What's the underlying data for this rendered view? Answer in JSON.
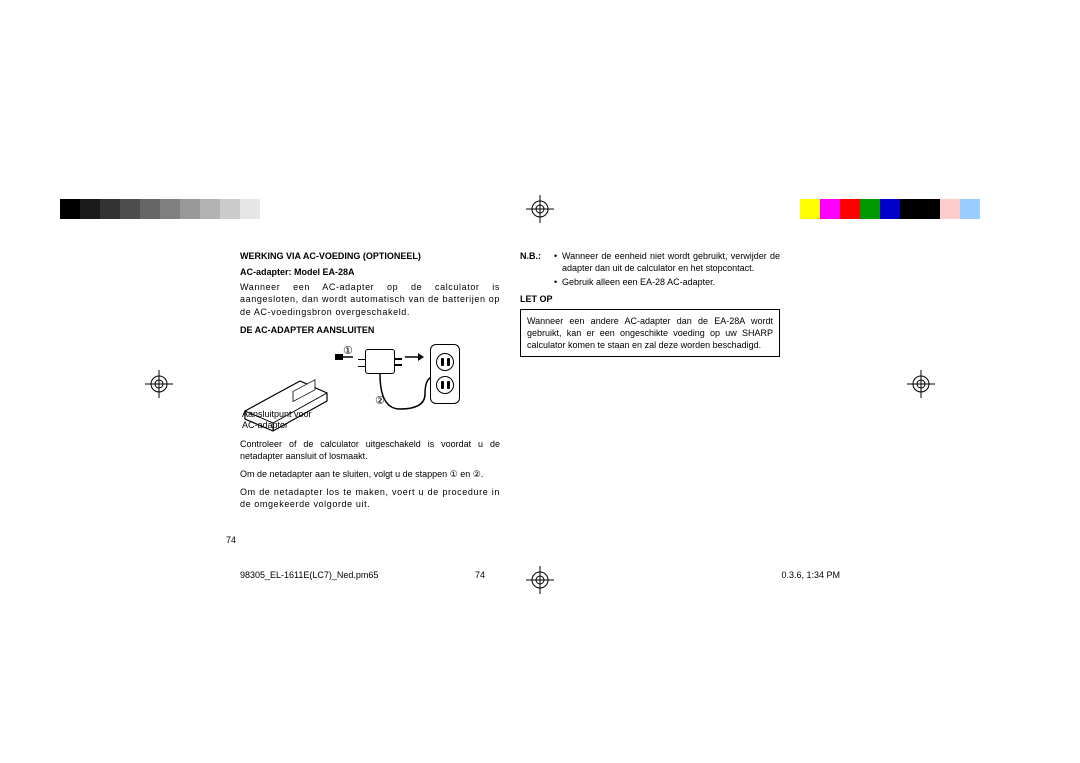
{
  "colorbars": {
    "gray_swatches": [
      "#000000",
      "#1a1a1a",
      "#333333",
      "#4d4d4d",
      "#666666",
      "#808080",
      "#999999",
      "#b3b3b3",
      "#cccccc",
      "#e6e6e6",
      "#ffffff"
    ],
    "color_swatches": [
      "#ffff00",
      "#ff00ff",
      "#ff0000",
      "#009900",
      "#0000cc",
      "#000000",
      "#000000",
      "#ffcccc",
      "#99ccff",
      "#ffffff",
      "#ffffff"
    ]
  },
  "page": {
    "number": "74",
    "left": {
      "title": "WERKING VIA AC-VOEDING (OPTIONEEL)",
      "subtitle": "AC-adapter: Model EA-28A",
      "intro": "Wanneer een AC-adapter op de calculator is aangesloten, dan wordt automatisch van de batterijen op de AC-voedingsbron overgeschakeld.",
      "heading2": "DE AC-ADAPTER AANSLUITEN",
      "diagram": {
        "label_line1": "Aansluitpunt voor",
        "label_line2": "AC-adaptor",
        "step1": "①",
        "step2": "②"
      },
      "p1": "Controleer of de calculator uitgeschakeld is voordat u de netadapter aansluit of losmaakt.",
      "p2a": "Om de netadapter aan te sluiten, volgt u de stappen ",
      "p2b": " en ",
      "p2c": ".",
      "p3": "Om de netadapter los te maken, voert u de procedure in de omgekeerde volgorde uit."
    },
    "right": {
      "nb_label": "N.B.:",
      "nb1": "Wanneer de eenheid niet wordt gebruikt, verwijder de adapter dan uit de calculator en het stopcontact.",
      "nb2": "Gebruik alleen een EA-28 AC-adapter.",
      "caution_heading": "LET OP",
      "caution_body": "Wanneer een andere AC-adapter dan de EA-28A wordt gebruikt, kan er een ongeschikte voeding op uw SHARP calculator komen te staan en zal deze worden beschadigd."
    }
  },
  "footer": {
    "file": "98305_EL-1611E(LC7)_Ned.pm65",
    "page": "74",
    "timestamp": "0.3.6, 1:34 PM"
  }
}
